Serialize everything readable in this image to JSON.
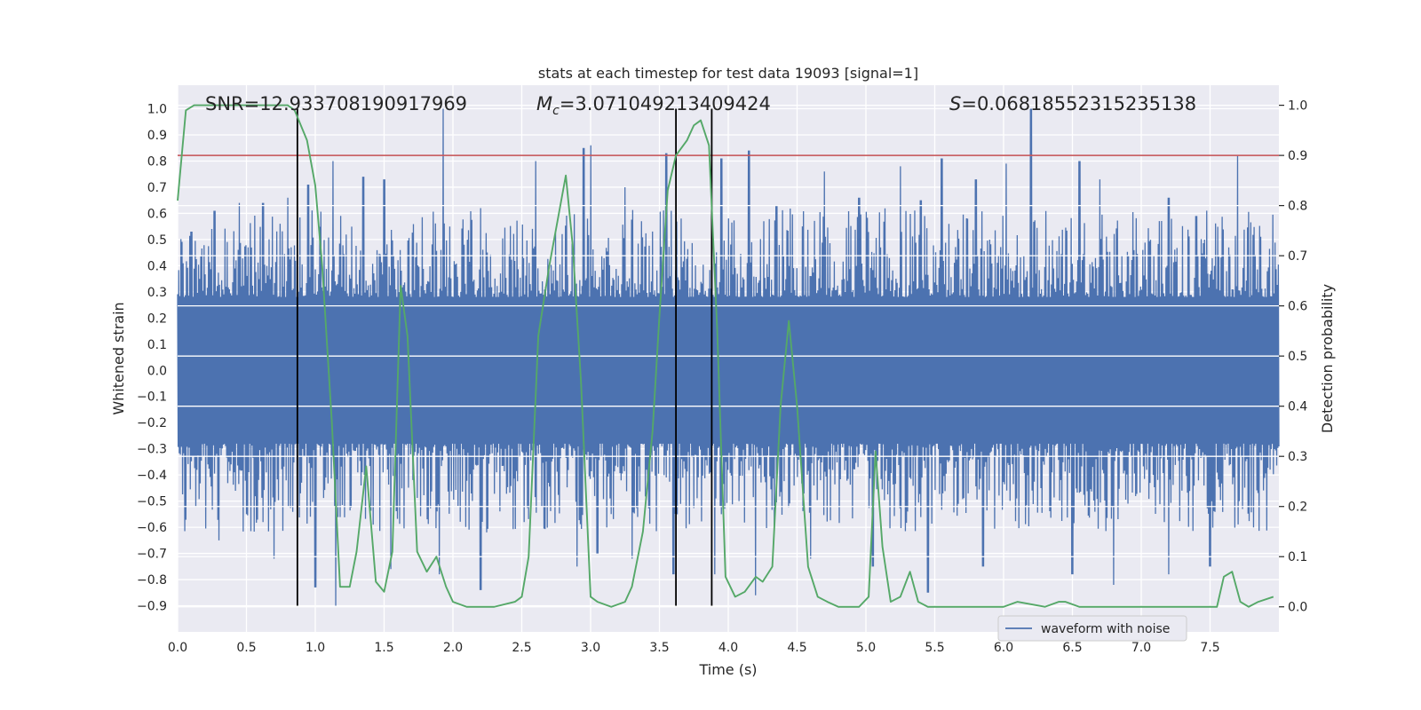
{
  "chart_data": {
    "type": "line",
    "title": "stats at each timestep for test data 19093 [signal=1]",
    "xlabel": "Time (s)",
    "ylabel": "Whitened strain",
    "ylabel_right": "Detection probability",
    "xlim": [
      0.0,
      8.0
    ],
    "ylim": [
      -1.0,
      1.09
    ],
    "ylim_right": [
      -0.05,
      1.04
    ],
    "x_ticks": [
      0.0,
      0.5,
      1.0,
      1.5,
      2.0,
      2.5,
      3.0,
      3.5,
      4.0,
      4.5,
      5.0,
      5.5,
      6.0,
      6.5,
      7.0,
      7.5
    ],
    "x_tick_labels": [
      "0.0",
      "0.5",
      "1.0",
      "1.5",
      "2.0",
      "2.5",
      "3.0",
      "3.5",
      "4.0",
      "4.5",
      "5.0",
      "5.5",
      "6.0",
      "6.5",
      "7.0",
      "7.5"
    ],
    "y_ticks": [
      -0.9,
      -0.8,
      -0.7,
      -0.6,
      -0.5,
      -0.4,
      -0.3,
      -0.2,
      -0.1,
      0.0,
      0.1,
      0.2,
      0.3,
      0.4,
      0.5,
      0.6,
      0.7,
      0.8,
      0.9,
      1.0
    ],
    "y_tick_labels": [
      "−0.9",
      "−0.8",
      "−0.7",
      "−0.6",
      "−0.5",
      "−0.4",
      "−0.3",
      "−0.2",
      "−0.1",
      "0.0",
      "0.1",
      "0.2",
      "0.3",
      "0.4",
      "0.5",
      "0.6",
      "0.7",
      "0.8",
      "0.9",
      "1.0"
    ],
    "y_right_ticks": [
      0.0,
      0.1,
      0.2,
      0.3,
      0.4,
      0.5,
      0.6,
      0.7,
      0.8,
      0.9,
      1.0
    ],
    "y_right_tick_labels": [
      "0.0",
      "0.1",
      "0.2",
      "0.3",
      "0.4",
      "0.5",
      "0.6",
      "0.7",
      "0.8",
      "0.9",
      "1.0"
    ],
    "grid": true,
    "legend": {
      "entries": [
        "waveform with noise"
      ],
      "placement": "lower-right"
    },
    "annotations": {
      "snr": "SNR=12.933708190917969",
      "mc_symbol": "M",
      "mc_subscript": "c",
      "mc_value": "=3.071049213409424",
      "s_symbol": "S",
      "s_value": "=0.06818552315235138"
    },
    "threshold": {
      "axis": "right",
      "value": 0.9
    },
    "vertical_lines": [
      0.87,
      3.62,
      3.88
    ],
    "vertical_line_span": [
      -0.9,
      1.0
    ],
    "series": [
      {
        "name": "waveform with noise",
        "axis": "left",
        "style": "dense-noise",
        "base_amplitude": 0.28,
        "spikes": [
          [
            0.1,
            0.53
          ],
          [
            0.27,
            0.61
          ],
          [
            0.45,
            0.64
          ],
          [
            0.62,
            0.64
          ],
          [
            0.8,
            0.66
          ],
          [
            0.95,
            0.71
          ],
          [
            1.13,
            0.8
          ],
          [
            1.35,
            0.74
          ],
          [
            1.5,
            0.73
          ],
          [
            1.93,
            1.0
          ],
          [
            2.2,
            0.62
          ],
          [
            2.6,
            0.8
          ],
          [
            2.95,
            0.85
          ],
          [
            3.0,
            0.86
          ],
          [
            3.25,
            0.7
          ],
          [
            3.55,
            0.83
          ],
          [
            3.95,
            0.81
          ],
          [
            4.15,
            0.84
          ],
          [
            4.35,
            0.63
          ],
          [
            4.7,
            0.76
          ],
          [
            4.95,
            0.66
          ],
          [
            5.25,
            0.78
          ],
          [
            5.4,
            0.65
          ],
          [
            5.55,
            0.81
          ],
          [
            5.8,
            0.73
          ],
          [
            6.02,
            0.79
          ],
          [
            6.2,
            1.0
          ],
          [
            6.55,
            0.8
          ],
          [
            6.7,
            0.73
          ],
          [
            7.2,
            0.66
          ],
          [
            7.4,
            0.59
          ],
          [
            7.7,
            0.82
          ],
          [
            0.3,
            -0.65
          ],
          [
            0.7,
            -0.72
          ],
          [
            1.0,
            -0.83
          ],
          [
            1.15,
            -0.9
          ],
          [
            1.55,
            -0.76
          ],
          [
            1.9,
            -0.78
          ],
          [
            2.2,
            -0.84
          ],
          [
            2.9,
            -0.75
          ],
          [
            3.05,
            -0.7
          ],
          [
            3.3,
            -0.72
          ],
          [
            3.6,
            -0.78
          ],
          [
            3.9,
            -0.78
          ],
          [
            4.2,
            -0.86
          ],
          [
            4.6,
            -0.72
          ],
          [
            5.05,
            -0.75
          ],
          [
            5.45,
            -0.85
          ],
          [
            5.85,
            -0.75
          ],
          [
            6.5,
            -0.78
          ],
          [
            6.8,
            -0.82
          ],
          [
            7.2,
            -0.78
          ],
          [
            7.5,
            -0.75
          ]
        ]
      },
      {
        "name": "",
        "axis": "right",
        "style": "line",
        "x": [
          0.0,
          0.06,
          0.12,
          0.5,
          0.6,
          0.8,
          0.85,
          0.94,
          1.0,
          1.05,
          1.12,
          1.18,
          1.25,
          1.3,
          1.37,
          1.44,
          1.5,
          1.56,
          1.62,
          1.67,
          1.74,
          1.81,
          1.88,
          1.95,
          2.0,
          2.1,
          2.3,
          2.45,
          2.5,
          2.55,
          2.62,
          2.7,
          2.78,
          2.82,
          2.87,
          2.93,
          3.0,
          3.05,
          3.15,
          3.25,
          3.3,
          3.38,
          3.45,
          3.5,
          3.56,
          3.62,
          3.7,
          3.75,
          3.8,
          3.86,
          3.92,
          3.98,
          4.05,
          4.12,
          4.2,
          4.25,
          4.32,
          4.38,
          4.44,
          4.5,
          4.58,
          4.65,
          4.72,
          4.8,
          4.88,
          4.95,
          5.02,
          5.07,
          5.12,
          5.18,
          5.25,
          5.32,
          5.38,
          5.45,
          5.55,
          5.7,
          5.8,
          6.0,
          6.1,
          6.3,
          6.4,
          6.45,
          6.55,
          7.0,
          7.2,
          7.55,
          7.6,
          7.66,
          7.72,
          7.78,
          7.85,
          7.96
        ],
        "y": [
          0.81,
          0.99,
          1.0,
          1.0,
          1.0,
          1.0,
          0.99,
          0.93,
          0.84,
          0.68,
          0.37,
          0.04,
          0.04,
          0.11,
          0.28,
          0.05,
          0.03,
          0.11,
          0.64,
          0.54,
          0.11,
          0.07,
          0.1,
          0.04,
          0.01,
          0.0,
          0.0,
          0.01,
          0.02,
          0.1,
          0.54,
          0.68,
          0.8,
          0.86,
          0.72,
          0.45,
          0.02,
          0.01,
          0.0,
          0.01,
          0.04,
          0.15,
          0.35,
          0.58,
          0.83,
          0.9,
          0.93,
          0.96,
          0.97,
          0.92,
          0.55,
          0.06,
          0.02,
          0.03,
          0.06,
          0.05,
          0.08,
          0.4,
          0.57,
          0.4,
          0.08,
          0.02,
          0.01,
          0.0,
          0.0,
          0.0,
          0.02,
          0.31,
          0.12,
          0.01,
          0.02,
          0.07,
          0.01,
          0.0,
          0.0,
          0.0,
          0.0,
          0.0,
          0.01,
          0.0,
          0.01,
          0.01,
          0.0,
          0.0,
          0.0,
          0.0,
          0.06,
          0.07,
          0.01,
          0.0,
          0.01,
          0.02
        ]
      }
    ]
  }
}
